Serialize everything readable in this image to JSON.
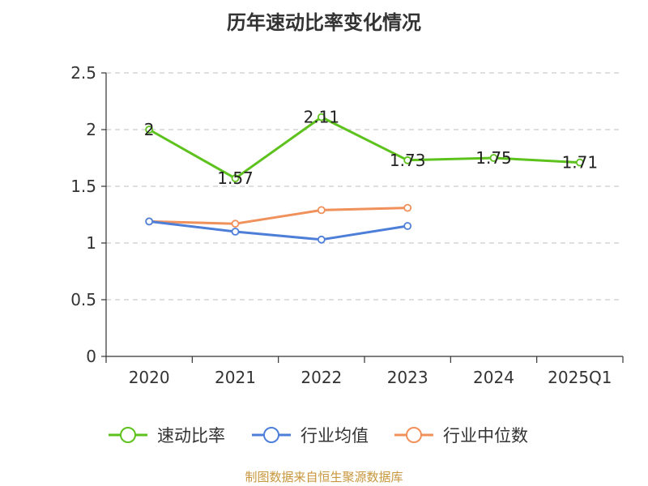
{
  "chart_data": {
    "type": "line",
    "title": "历年速动比率变化情况",
    "categories": [
      "2020",
      "2021",
      "2022",
      "2023",
      "2024",
      "2025Q1"
    ],
    "ylim": [
      0,
      2.5
    ],
    "yticks": [
      "0",
      "0.5",
      "1",
      "1.5",
      "2",
      "2.5"
    ],
    "grid": true,
    "legend_position": "bottom",
    "series": [
      {
        "name": "速动比率",
        "color": "#5dc21e",
        "values": [
          2,
          1.57,
          2.11,
          1.73,
          1.75,
          1.71
        ],
        "labels": [
          "2",
          "1.57",
          "2.11",
          "1.73",
          "1.75",
          "1.71"
        ]
      },
      {
        "name": "行业均值",
        "color": "#4e7fd8",
        "values": [
          1.19,
          1.1,
          1.03,
          1.15,
          null,
          null
        ]
      },
      {
        "name": "行业中位数",
        "color": "#f0905a",
        "values": [
          1.19,
          1.17,
          1.29,
          1.31,
          null,
          null
        ]
      }
    ]
  },
  "footer": "制图数据来自恒生聚源数据库"
}
